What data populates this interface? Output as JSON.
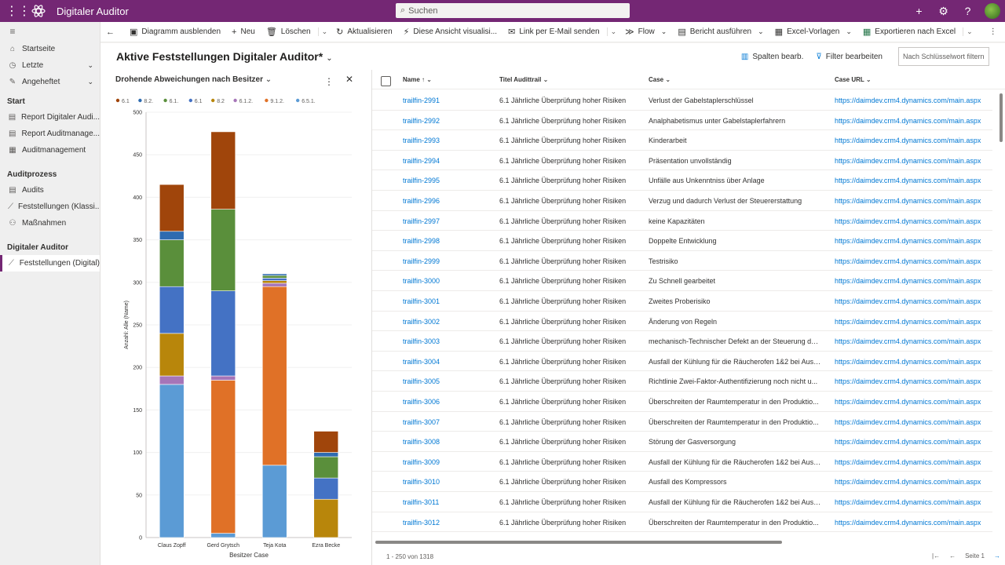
{
  "app": {
    "title": "Digitaler Auditor",
    "search_placeholder": "Suchen"
  },
  "sidebar": {
    "items": [
      {
        "label": "Startseite",
        "icon": "home-icon"
      },
      {
        "label": "Letzte",
        "icon": "clock-icon"
      },
      {
        "label": "Angeheftet",
        "icon": "pin-icon"
      }
    ],
    "groups": [
      {
        "title": "Start",
        "items": [
          "Report Digitaler Audi...",
          "Report Auditmanage...",
          "Auditmanagement"
        ]
      },
      {
        "title": "Auditprozess",
        "items": [
          "Audits",
          "Feststellungen (Klassi...",
          "Maßnahmen"
        ]
      },
      {
        "title": "Digitaler Auditor",
        "items": [
          "Feststellungen (Digital)"
        ]
      }
    ]
  },
  "commands": {
    "hide_chart": "Diagramm ausblenden",
    "new": "Neu",
    "delete": "Löschen",
    "refresh": "Aktualisieren",
    "visualize": "Diese Ansicht visualisi...",
    "email_link": "Link per E-Mail senden",
    "flow": "Flow",
    "run_report": "Bericht ausführen",
    "excel_templates": "Excel-Vorlagen",
    "export_excel": "Exportieren nach Excel"
  },
  "view": {
    "title": "Aktive Feststellungen Digitaler Auditor*",
    "edit_columns": "Spalten bearb.",
    "edit_filters": "Filter bearbeiten",
    "keyword_placeholder": "Nach Schlüsselwort filtern"
  },
  "chart_data": {
    "type": "bar",
    "stacked": true,
    "title": "Drohende Abweichungen nach Besitzer",
    "xlabel": "Besitzer Case",
    "ylabel": "Anzahl: Alle (Name)",
    "ylim": [
      0,
      500
    ],
    "yticks": [
      0,
      50,
      100,
      150,
      200,
      250,
      300,
      350,
      400,
      450,
      500
    ],
    "categories": [
      "Claus Zopff",
      "Gerd Grytsch",
      "Teja Kota",
      "Ezra Becke"
    ],
    "series": [
      {
        "name": "6.5.1.",
        "color": "#5b9bd5",
        "values": [
          180,
          5,
          85,
          0
        ]
      },
      {
        "name": "9.1.2.",
        "color": "#e07127",
        "values": [
          0,
          180,
          210,
          0
        ]
      },
      {
        "name": "6.1.2.",
        "color": "#a675b8",
        "values": [
          10,
          5,
          4,
          0
        ]
      },
      {
        "name": "8.2",
        "color": "#b8860b",
        "values": [
          50,
          0,
          3,
          45
        ]
      },
      {
        "name": "6.1",
        "color": "#4472c4",
        "values": [
          55,
          100,
          3,
          25
        ]
      },
      {
        "name": "6.1.",
        "color": "#5a8f3b",
        "values": [
          55,
          96,
          3,
          25
        ]
      },
      {
        "name": "8.2.",
        "color": "#2e6bb0",
        "values": [
          10,
          0,
          2,
          5
        ]
      },
      {
        "name": "6.1",
        "color": "#a0450b",
        "values": [
          55,
          91,
          0,
          25
        ]
      }
    ],
    "legend": [
      "6.1",
      "8.2.",
      "6.1.",
      "6.1",
      "8.2",
      "6.1.2.",
      "9.1.2.",
      "6.5.1."
    ],
    "legend_colors": [
      "#a0450b",
      "#2e6bb0",
      "#5a8f3b",
      "#4472c4",
      "#b8860b",
      "#a675b8",
      "#e07127",
      "#5b9bd5"
    ]
  },
  "grid": {
    "columns": [
      "Name",
      "Titel Audittrail",
      "Case",
      "Case URL"
    ],
    "rows": [
      [
        "trailfin-2991",
        "6.1 Jährliche Überprüfung hoher Risiken",
        "Verlust der Gabelstaplerschlüssel",
        "https://daimdev.crm4.dynamics.com/main.aspx"
      ],
      [
        "trailfin-2992",
        "6.1 Jährliche Überprüfung hoher Risiken",
        "Analphabetismus unter Gabelstaplerfahrern",
        "https://daimdev.crm4.dynamics.com/main.aspx"
      ],
      [
        "trailfin-2993",
        "6.1 Jährliche Überprüfung hoher Risiken",
        "Kinderarbeit",
        "https://daimdev.crm4.dynamics.com/main.aspx"
      ],
      [
        "trailfin-2994",
        "6.1 Jährliche Überprüfung hoher Risiken",
        "Präsentation unvollständig",
        "https://daimdev.crm4.dynamics.com/main.aspx"
      ],
      [
        "trailfin-2995",
        "6.1 Jährliche Überprüfung hoher Risiken",
        "Unfälle aus Unkenntniss über Anlage",
        "https://daimdev.crm4.dynamics.com/main.aspx"
      ],
      [
        "trailfin-2996",
        "6.1 Jährliche Überprüfung hoher Risiken",
        "Verzug und dadurch Verlust der Steuererstattung",
        "https://daimdev.crm4.dynamics.com/main.aspx"
      ],
      [
        "trailfin-2997",
        "6.1 Jährliche Überprüfung hoher Risiken",
        "keine Kapazitäten",
        "https://daimdev.crm4.dynamics.com/main.aspx"
      ],
      [
        "trailfin-2998",
        "6.1 Jährliche Überprüfung hoher Risiken",
        "Doppelte Entwicklung",
        "https://daimdev.crm4.dynamics.com/main.aspx"
      ],
      [
        "trailfin-2999",
        "6.1 Jährliche Überprüfung hoher Risiken",
        "Testrisiko",
        "https://daimdev.crm4.dynamics.com/main.aspx"
      ],
      [
        "trailfin-3000",
        "6.1 Jährliche Überprüfung hoher Risiken",
        "Zu Schnell gearbeitet",
        "https://daimdev.crm4.dynamics.com/main.aspx"
      ],
      [
        "trailfin-3001",
        "6.1 Jährliche Überprüfung hoher Risiken",
        "Zweites Proberisiko",
        "https://daimdev.crm4.dynamics.com/main.aspx"
      ],
      [
        "trailfin-3002",
        "6.1 Jährliche Überprüfung hoher Risiken",
        "Änderung von Regeln",
        "https://daimdev.crm4.dynamics.com/main.aspx"
      ],
      [
        "trailfin-3003",
        "6.1 Jährliche Überprüfung hoher Risiken",
        "mechanisch-Technischer Defekt an der Steuerung der...",
        "https://daimdev.crm4.dynamics.com/main.aspx"
      ],
      [
        "trailfin-3004",
        "6.1 Jährliche Überprüfung hoher Risiken",
        "Ausfall der Kühlung für die Räucherofen 1&2 bei Ausf...",
        "https://daimdev.crm4.dynamics.com/main.aspx"
      ],
      [
        "trailfin-3005",
        "6.1 Jährliche Überprüfung hoher Risiken",
        "Richtlinie Zwei-Faktor-Authentifizierung noch nicht u...",
        "https://daimdev.crm4.dynamics.com/main.aspx"
      ],
      [
        "trailfin-3006",
        "6.1 Jährliche Überprüfung hoher Risiken",
        "Überschreiten der Raumtemperatur in den Produktio...",
        "https://daimdev.crm4.dynamics.com/main.aspx"
      ],
      [
        "trailfin-3007",
        "6.1 Jährliche Überprüfung hoher Risiken",
        "Überschreiten der Raumtemperatur in den Produktio...",
        "https://daimdev.crm4.dynamics.com/main.aspx"
      ],
      [
        "trailfin-3008",
        "6.1 Jährliche Überprüfung hoher Risiken",
        "Störung der Gasversorgung",
        "https://daimdev.crm4.dynamics.com/main.aspx"
      ],
      [
        "trailfin-3009",
        "6.1 Jährliche Überprüfung hoher Risiken",
        "Ausfall der Kühlung für die Räucherofen 1&2 bei Ausf...",
        "https://daimdev.crm4.dynamics.com/main.aspx"
      ],
      [
        "trailfin-3010",
        "6.1 Jährliche Überprüfung hoher Risiken",
        "Ausfall des Kompressors",
        "https://daimdev.crm4.dynamics.com/main.aspx"
      ],
      [
        "trailfin-3011",
        "6.1 Jährliche Überprüfung hoher Risiken",
        "Ausfall der Kühlung für die Räucherofen 1&2 bei Ausf...",
        "https://daimdev.crm4.dynamics.com/main.aspx"
      ],
      [
        "trailfin-3012",
        "6.1 Jährliche Überprüfung hoher Risiken",
        "Überschreiten der Raumtemperatur in den Produktio...",
        "https://daimdev.crm4.dynamics.com/main.aspx"
      ]
    ],
    "record_count": "1 - 250 von 1318",
    "page_label": "Seite 1"
  }
}
